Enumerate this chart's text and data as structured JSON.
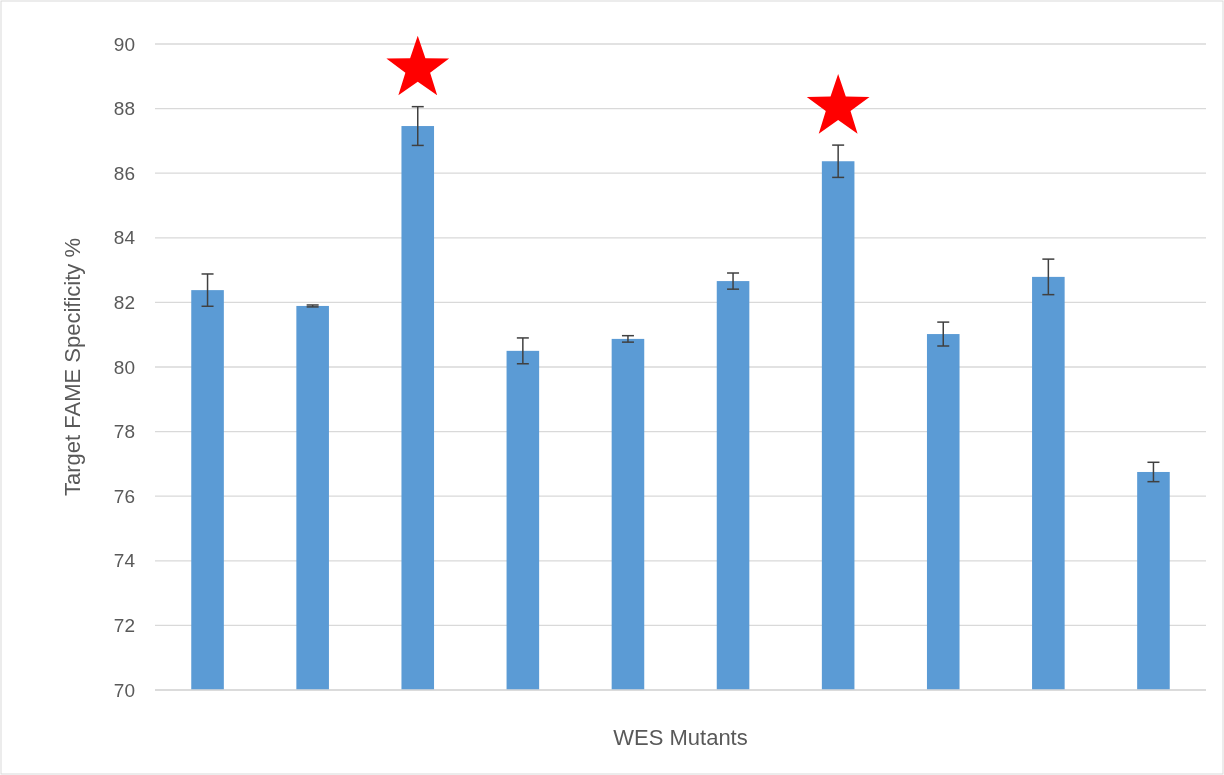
{
  "chart_data": {
    "type": "bar",
    "xlabel": "WES Mutants",
    "ylabel": "Target FAME Specificity %",
    "categories": [
      null,
      null,
      null,
      null,
      null,
      null,
      null,
      null,
      null,
      null
    ],
    "values": [
      82.38,
      81.89,
      87.46,
      80.5,
      80.87,
      82.66,
      86.37,
      81.02,
      82.79,
      76.75
    ],
    "errors": [
      0.5,
      0.03,
      0.6,
      0.4,
      0.1,
      0.25,
      0.5,
      0.37,
      0.55,
      0.3
    ],
    "color": "#5b9bd5",
    "ylim": [
      70,
      90
    ],
    "yticks": [
      70,
      72,
      74,
      76,
      78,
      80,
      82,
      84,
      86,
      88,
      90
    ],
    "grid": "y"
  }
}
